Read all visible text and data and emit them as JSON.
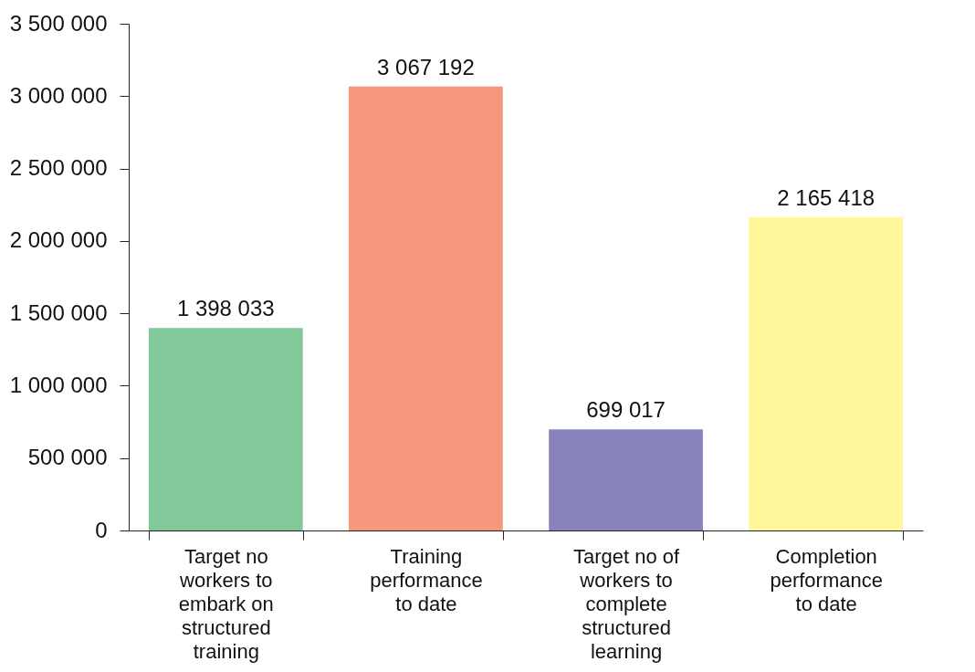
{
  "chart_data": {
    "type": "bar",
    "categories": [
      "Target no workers to embark on structured training",
      "Training performance to date",
      "Target no of workers to complete structured learning",
      "Completion performance to date"
    ],
    "values": [
      1398033,
      3067192,
      699017,
      2165418
    ],
    "colors": [
      "#82c99a",
      "#f4977a",
      "#8883bc",
      "#fff799"
    ],
    "value_labels": [
      "1 398 033",
      "3 067 192",
      "699 017",
      "2 165 418"
    ],
    "ylim": [
      0,
      3500000
    ],
    "yticks": [
      0,
      {
        "value": 500000,
        "label": "500 000"
      },
      {
        "value": 1000000,
        "label": "1 000 000"
      },
      {
        "value": 1500000,
        "label": "1 500 000"
      },
      {
        "value": 2000000,
        "label": "2 000 000"
      },
      {
        "value": 2500000,
        "label": "2 500 000"
      },
      {
        "value": 3000000,
        "label": "3 000 000"
      },
      {
        "value": 3500000,
        "label": "3 500 000"
      }
    ],
    "grid": false
  }
}
